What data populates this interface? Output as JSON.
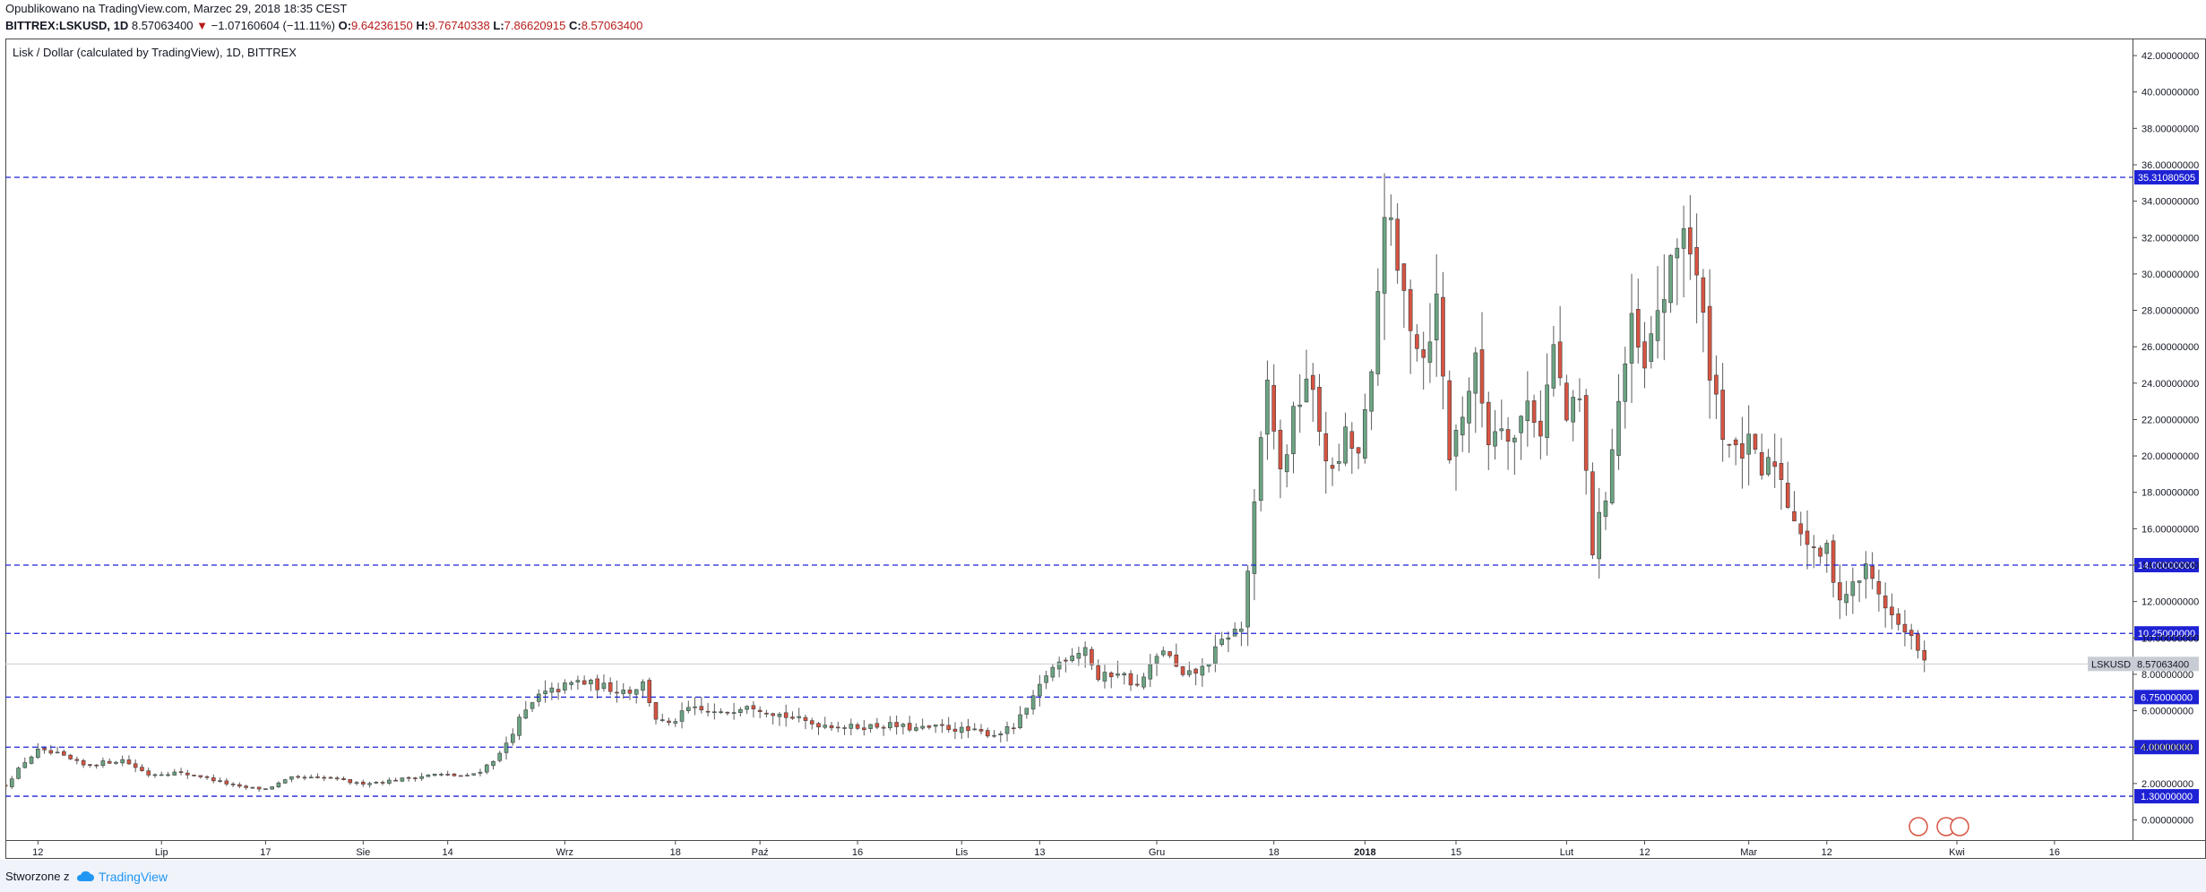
{
  "header": {
    "published": "Opublikowano na TradingView.com, Marzec 29, 2018 18:35 CEST",
    "symbol": "BITTREX:LSKUSD, 1D",
    "last": "8.57063400",
    "change": "−1.07160604 (−11.11%)",
    "open_label": "O:",
    "open": "9.64236150",
    "high_label": "H:",
    "high": "9.76740338",
    "low_label": "L:",
    "low": "7.86620915",
    "close_label": "C:",
    "close": "8.57063400"
  },
  "footer": {
    "made_with": "Stworzone z",
    "brand": "TradingView"
  },
  "colors": {
    "up": "#6ba583",
    "down": "#d75442",
    "level": "#1e22d4",
    "grid": "#e0e3eb",
    "price_tag": "#c8ccd4"
  },
  "chart_data": {
    "type": "candlestick",
    "title": "Lisk / Dollar (calculated by TradingView), 1D, BITTREX",
    "symbol_tag": "LSKUSD",
    "last_price": 8.570634,
    "last_price_label": "8.57063400",
    "ylim": [
      -1,
      43
    ],
    "y_ticks": [
      0,
      2,
      4,
      6,
      8,
      10,
      12,
      14,
      16,
      18,
      20,
      22,
      24,
      26,
      28,
      30,
      32,
      34,
      36,
      38,
      40,
      42
    ],
    "y_tick_labels": [
      "0.00000000",
      "2.00000000",
      "4.00000000",
      "6.00000000",
      "8.00000000",
      "10.00000000",
      "12.00000000",
      "14.00000000",
      "16.00000000",
      "18.00000000",
      "20.00000000",
      "22.00000000",
      "24.00000000",
      "26.00000000",
      "28.00000000",
      "30.00000000",
      "32.00000000",
      "34.00000000",
      "36.00000000",
      "38.00000000",
      "40.00000000",
      "42.00000000"
    ],
    "x_ticks": [
      {
        "label": "12",
        "day": 5
      },
      {
        "label": "Lip",
        "day": 24
      },
      {
        "label": "17",
        "day": 40
      },
      {
        "label": "Sie",
        "day": 55
      },
      {
        "label": "14",
        "day": 68
      },
      {
        "label": "Wrz",
        "day": 86
      },
      {
        "label": "18",
        "day": 103
      },
      {
        "label": "Paź",
        "day": 116
      },
      {
        "label": "16",
        "day": 131
      },
      {
        "label": "Lis",
        "day": 147
      },
      {
        "label": "13",
        "day": 159
      },
      {
        "label": "Gru",
        "day": 177
      },
      {
        "label": "18",
        "day": 195
      },
      {
        "label": "2018",
        "day": 209
      },
      {
        "label": "15",
        "day": 223
      },
      {
        "label": "Lut",
        "day": 240
      },
      {
        "label": "12",
        "day": 252
      },
      {
        "label": "Mar",
        "day": 268
      },
      {
        "label": "12",
        "day": 280
      },
      {
        "label": "Kwi",
        "day": 300
      },
      {
        "label": "16",
        "day": 315
      }
    ],
    "day_range": [
      0,
      327
    ],
    "horizontal_levels": [
      {
        "value": 35.31080505,
        "label": "35.31080505"
      },
      {
        "value": 14.0,
        "label": "14.00000000"
      },
      {
        "value": 10.25,
        "label": "10.25000000"
      },
      {
        "value": 6.75,
        "label": "6.75000000"
      },
      {
        "value": 4.0,
        "label": "4.00000000"
      },
      {
        "value": 1.3,
        "label": "1.30000000"
      }
    ],
    "anchors": [
      [
        0,
        1.9
      ],
      [
        3,
        3.2
      ],
      [
        5,
        3.8
      ],
      [
        8,
        3.6
      ],
      [
        12,
        3.0
      ],
      [
        18,
        3.3
      ],
      [
        22,
        2.5
      ],
      [
        26,
        2.6
      ],
      [
        30,
        2.4
      ],
      [
        36,
        1.8
      ],
      [
        40,
        1.7
      ],
      [
        44,
        2.3
      ],
      [
        50,
        2.3
      ],
      [
        54,
        2.0
      ],
      [
        58,
        2.1
      ],
      [
        62,
        2.3
      ],
      [
        66,
        2.5
      ],
      [
        71,
        2.4
      ],
      [
        73,
        2.7
      ],
      [
        76,
        3.6
      ],
      [
        79,
        5.5
      ],
      [
        82,
        6.8
      ],
      [
        85,
        7.2
      ],
      [
        88,
        7.6
      ],
      [
        92,
        7.3
      ],
      [
        96,
        7.1
      ],
      [
        98,
        7.5
      ],
      [
        100,
        5.6
      ],
      [
        102,
        5.2
      ],
      [
        105,
        6.1
      ],
      [
        110,
        5.8
      ],
      [
        114,
        6.4
      ],
      [
        119,
        5.8
      ],
      [
        124,
        5.3
      ],
      [
        130,
        5.1
      ],
      [
        136,
        5.2
      ],
      [
        140,
        5.0
      ],
      [
        144,
        5.1
      ],
      [
        148,
        4.9
      ],
      [
        152,
        4.7
      ],
      [
        155,
        5.1
      ],
      [
        158,
        6.6
      ],
      [
        160,
        8.0
      ],
      [
        163,
        9.0
      ],
      [
        166,
        9.5
      ],
      [
        168,
        7.7
      ],
      [
        171,
        8.2
      ],
      [
        174,
        7.3
      ],
      [
        178,
        9.4
      ],
      [
        181,
        7.8
      ],
      [
        184,
        8.3
      ],
      [
        188,
        10.2
      ],
      [
        190,
        10.5
      ],
      [
        192,
        17.0
      ],
      [
        194,
        24.0
      ],
      [
        196,
        19.0
      ],
      [
        198,
        22.0
      ],
      [
        200,
        24.5
      ],
      [
        202,
        21.5
      ],
      [
        204,
        18.8
      ],
      [
        206,
        21.0
      ],
      [
        208,
        20.0
      ],
      [
        210,
        24.0
      ],
      [
        212,
        34.0
      ],
      [
        214,
        30.0
      ],
      [
        216,
        27.5
      ],
      [
        218,
        25.5
      ],
      [
        220,
        28.5
      ],
      [
        222,
        20.0
      ],
      [
        224,
        22.5
      ],
      [
        226,
        25.0
      ],
      [
        228,
        21.0
      ],
      [
        230,
        22.0
      ],
      [
        232,
        21.0
      ],
      [
        234,
        23.0
      ],
      [
        236,
        21.5
      ],
      [
        238,
        26.0
      ],
      [
        240,
        22.0
      ],
      [
        242,
        23.0
      ],
      [
        244,
        14.8
      ],
      [
        246,
        18.0
      ],
      [
        248,
        23.0
      ],
      [
        250,
        27.0
      ],
      [
        252,
        24.5
      ],
      [
        254,
        28.0
      ],
      [
        256,
        30.0
      ],
      [
        258,
        33.0
      ],
      [
        260,
        29.5
      ],
      [
        262,
        25.0
      ],
      [
        264,
        21.5
      ],
      [
        266,
        20.0
      ],
      [
        268,
        20.5
      ],
      [
        270,
        19.0
      ],
      [
        272,
        19.8
      ],
      [
        274,
        17.5
      ],
      [
        276,
        16.0
      ],
      [
        278,
        14.5
      ],
      [
        280,
        14.8
      ],
      [
        282,
        12.2
      ],
      [
        284,
        12.8
      ],
      [
        286,
        13.8
      ],
      [
        288,
        12.5
      ],
      [
        290,
        11.2
      ],
      [
        292,
        10.2
      ],
      [
        294,
        9.6
      ],
      [
        295,
        8.57
      ]
    ],
    "series_note": "Daily OHLC candles interpolated from the visible price path (approx. Jun 2017 – Mar 2018)"
  }
}
